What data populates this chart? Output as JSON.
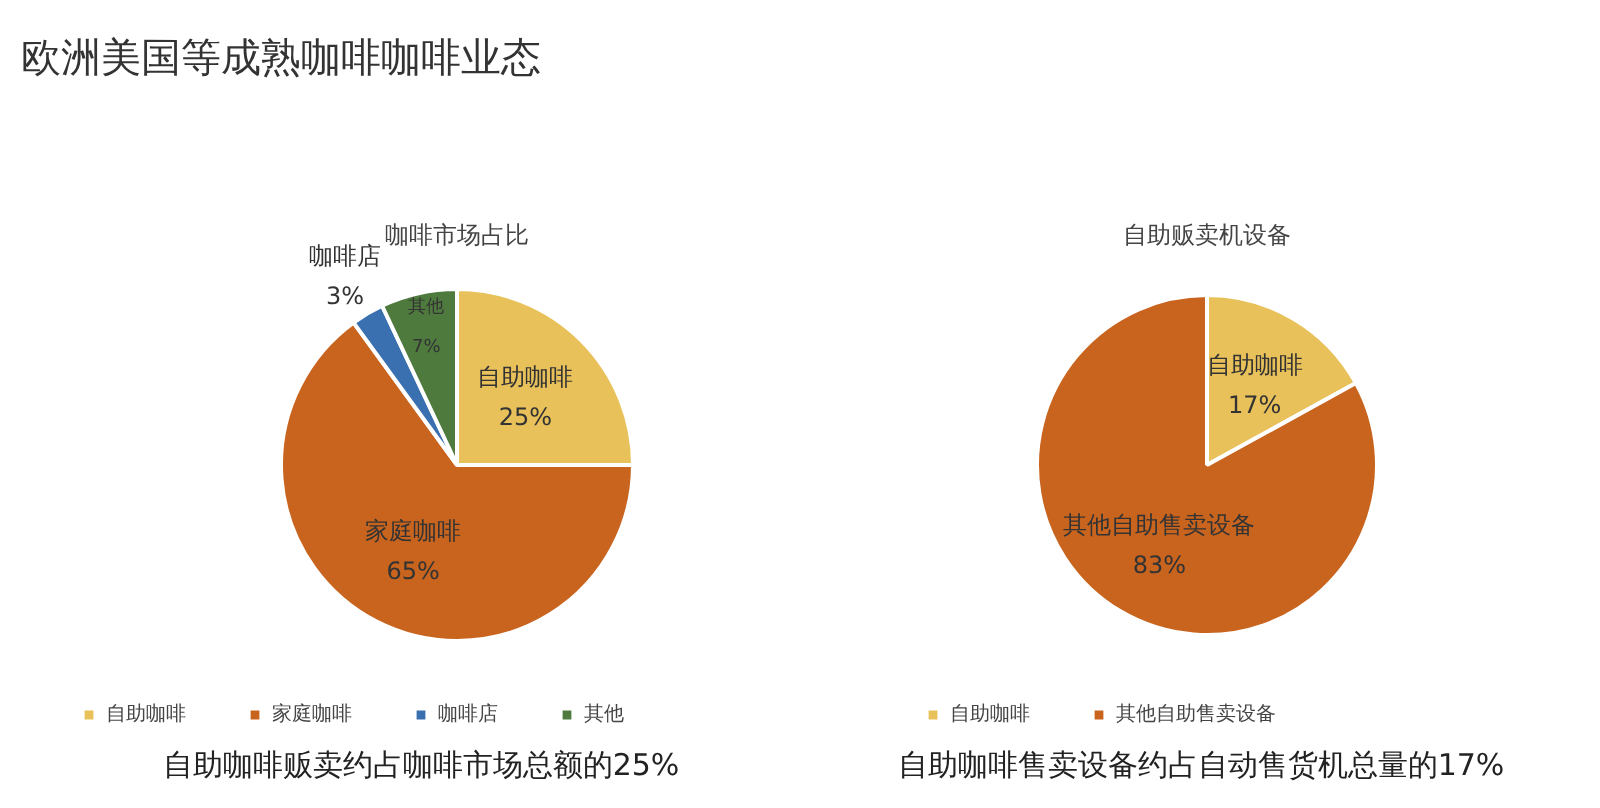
{
  "chart_data": [
    {
      "type": "pie",
      "title": "咖啡市场占比",
      "categories": [
        "自助咖啡",
        "家庭咖啡",
        "咖啡店",
        "其他"
      ],
      "values": [
        25,
        65,
        3,
        7
      ],
      "colors": [
        "#e8c15a",
        "#c8641e",
        "#3a6fb0",
        "#4e7a3e"
      ],
      "value_labels": [
        "25%",
        "65%",
        "3%",
        "7%"
      ],
      "legend": "bottom",
      "annotations": [
        "欧洲美国等成熟咖啡咖啡业态",
        "自助咖啡贩卖约占咖啡市场总额的25%"
      ]
    },
    {
      "type": "pie",
      "title": "自助贩卖机设备",
      "categories": [
        "自助咖啡",
        "其他自助售卖设备"
      ],
      "values": [
        17,
        83
      ],
      "colors": [
        "#e8c15a",
        "#c8641e"
      ],
      "value_labels": [
        "17%",
        "83%"
      ],
      "legend": "bottom",
      "annotations": [
        "自助咖啡售卖设备约占自动售货机总量的17%"
      ]
    }
  ]
}
